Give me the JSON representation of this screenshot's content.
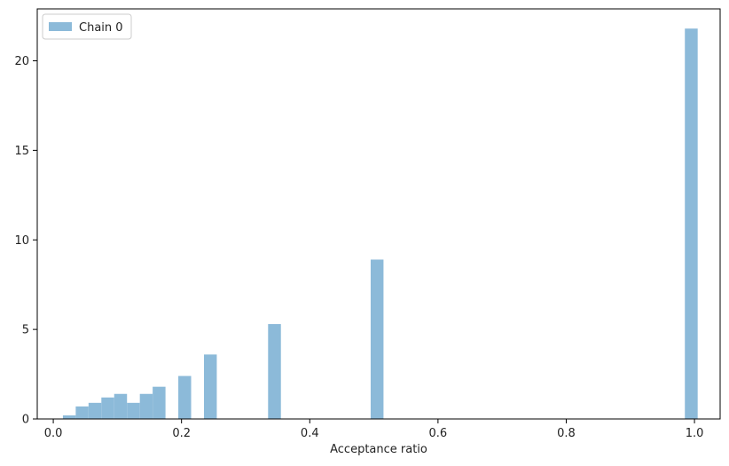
{
  "chart_data": {
    "type": "bar",
    "xlabel": "Acceptance ratio",
    "ylabel": "",
    "xlim": [
      -0.025,
      1.04
    ],
    "ylim": [
      0,
      22.9
    ],
    "bin_width": 0.02,
    "xticks": [
      0.0,
      0.2,
      0.4,
      0.6,
      0.8,
      1.0
    ],
    "xtick_labels": [
      "0.0",
      "0.2",
      "0.4",
      "0.6",
      "0.8",
      "1.0"
    ],
    "yticks": [
      0,
      5,
      10,
      15,
      20
    ],
    "ytick_labels": [
      "0",
      "5",
      "10",
      "15",
      "20"
    ],
    "legend_position": "top-left",
    "grid": false,
    "bar_color": "#8cbad9",
    "series": [
      {
        "name": "Chain 0",
        "bins": [
          {
            "x0": 0.015,
            "value": 0.2
          },
          {
            "x0": 0.035,
            "value": 0.7
          },
          {
            "x0": 0.055,
            "value": 0.9
          },
          {
            "x0": 0.075,
            "value": 1.2
          },
          {
            "x0": 0.095,
            "value": 1.4
          },
          {
            "x0": 0.115,
            "value": 0.9
          },
          {
            "x0": 0.135,
            "value": 1.4
          },
          {
            "x0": 0.155,
            "value": 1.8
          },
          {
            "x0": 0.195,
            "value": 2.4
          },
          {
            "x0": 0.235,
            "value": 3.6
          },
          {
            "x0": 0.335,
            "value": 5.3
          },
          {
            "x0": 0.495,
            "value": 8.9
          },
          {
            "x0": 0.985,
            "value": 21.8
          }
        ]
      }
    ]
  }
}
